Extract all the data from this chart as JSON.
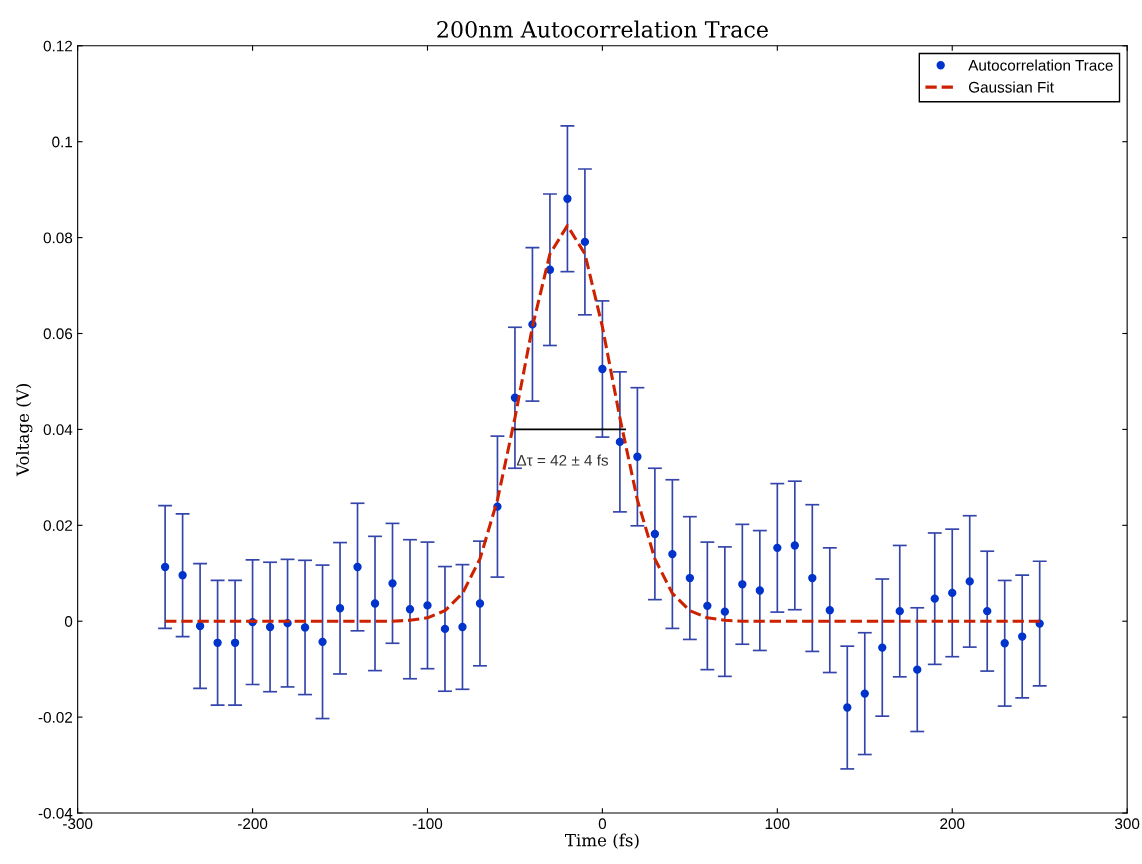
{
  "chart_data": {
    "type": "scatter",
    "title": "200nm Autocorrelation Trace",
    "xlabel": "Time (fs)",
    "ylabel": "Voltage (V)",
    "xlim": [
      -300,
      300
    ],
    "xticks": [
      -300,
      -200,
      -100,
      0,
      100,
      200,
      300
    ],
    "ylim": [
      -0.04,
      0.12
    ],
    "yticks": [
      -0.04,
      -0.02,
      0,
      0.02,
      0.04,
      0.06,
      0.08,
      0.1,
      0.12
    ],
    "grid": false,
    "legend": "top right",
    "annotations": [
      "Δτ = 42 ± 4 fs"
    ],
    "series": [
      {
        "name": "Autocorrelation Trace",
        "color": "#0033cc",
        "marker": "circle",
        "x": [
          -250,
          -240,
          -230,
          -220,
          -210,
          -200,
          -190,
          -180,
          -170,
          -160,
          -150,
          -140,
          -130,
          -120,
          -110,
          -100,
          -90,
          -80,
          -70,
          -60,
          -50,
          -40,
          -30,
          -20,
          -10,
          0,
          10,
          20,
          30,
          40,
          50,
          60,
          70,
          80,
          90,
          100,
          110,
          120,
          130,
          140,
          150,
          160,
          170,
          180,
          190,
          200,
          210,
          220,
          230,
          240,
          250
        ],
        "values": [
          0.0113,
          0.0096,
          -0.001,
          -0.0045,
          -0.0045,
          -0.0002,
          -0.0012,
          -0.0004,
          -0.0013,
          -0.0043,
          0.0027,
          0.0113,
          0.0037,
          0.0079,
          0.0025,
          0.0033,
          -0.0016,
          -0.0012,
          0.0037,
          0.0239,
          0.0466,
          0.0619,
          0.0733,
          0.0881,
          0.0791,
          0.0526,
          0.0374,
          0.0343,
          0.0182,
          0.014,
          0.009,
          0.0032,
          0.002,
          0.0077,
          0.0064,
          0.0153,
          0.0158,
          0.009,
          0.0023,
          -0.018,
          -0.0151,
          -0.0055,
          0.0021,
          -0.0101,
          0.0047,
          0.0059,
          0.0083,
          0.0021,
          -0.0046,
          -0.0032,
          -0.0005
        ],
        "errors": [
          0.0128,
          0.0128,
          0.013,
          0.013,
          0.013,
          0.013,
          0.0135,
          0.0133,
          0.014,
          0.016,
          0.0137,
          0.0133,
          0.014,
          0.0125,
          0.0145,
          0.0132,
          0.013,
          0.013,
          0.013,
          0.0147,
          0.0147,
          0.016,
          0.0158,
          0.0152,
          0.0152,
          0.0142,
          0.0146,
          0.0144,
          0.0137,
          0.0155,
          0.0128,
          0.0133,
          0.0135,
          0.0125,
          0.0125,
          0.0134,
          0.0134,
          0.0153,
          0.013,
          0.0128,
          0.0127,
          0.0143,
          0.0137,
          0.0129,
          0.0137,
          0.0133,
          0.0137,
          0.0125,
          0.0131,
          0.0128,
          0.013
        ]
      },
      {
        "name": "Gaussian Fit",
        "type": "line",
        "color": "#cc2200",
        "line_style": "dashed",
        "marker": "none",
        "x": [
          -250,
          -130,
          -120,
          -110,
          -100,
          -90,
          -80,
          -70,
          -60,
          -50,
          -40,
          -30,
          -20,
          -10,
          0,
          10,
          20,
          30,
          40,
          50,
          60,
          70,
          80,
          90,
          250
        ],
        "values": [
          0,
          0,
          0,
          0.0002,
          0.0007,
          0.0022,
          0.0058,
          0.013,
          0.0253,
          0.0424,
          0.0614,
          0.0766,
          0.0825,
          0.0766,
          0.0614,
          0.0424,
          0.0253,
          0.013,
          0.0058,
          0.0022,
          0.0007,
          0.0002,
          0,
          0,
          0
        ]
      },
      {
        "type": "line",
        "color": "#000000",
        "line_style": "solid",
        "marker": "none",
        "x": [
          -50,
          13
        ],
        "values": [
          0.04,
          0.04
        ]
      }
    ]
  }
}
